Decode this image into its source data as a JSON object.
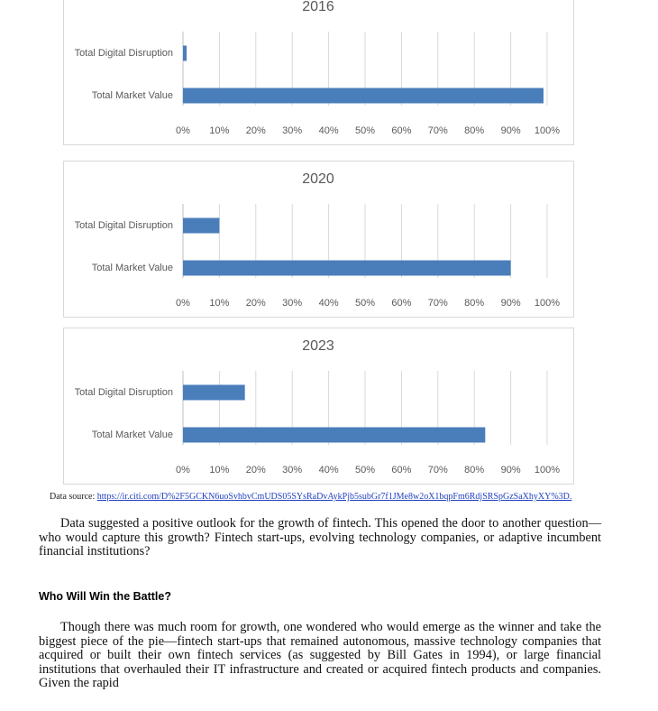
{
  "chart_data": [
    {
      "type": "bar",
      "orientation": "horizontal",
      "title": "2016",
      "categories": [
        "Total Digital Disruption",
        "Total Market Value"
      ],
      "values": [
        1,
        99
      ],
      "color": "#4a7ebb",
      "xlim": [
        0,
        100
      ],
      "grid": true,
      "xticks": [
        {
          "value": 0,
          "label": "0%"
        },
        {
          "value": 10,
          "label": "10%"
        },
        {
          "value": 20,
          "label": "20%"
        },
        {
          "value": 30,
          "label": "30%"
        },
        {
          "value": 40,
          "label": "40%"
        },
        {
          "value": 50,
          "label": "50%"
        },
        {
          "value": 60,
          "label": "60%"
        },
        {
          "value": 70,
          "label": "70%"
        },
        {
          "value": 80,
          "label": "80%"
        },
        {
          "value": 90,
          "label": "90%"
        },
        {
          "value": 100,
          "label": "100%"
        }
      ]
    },
    {
      "type": "bar",
      "orientation": "horizontal",
      "title": "2020",
      "categories": [
        "Total Digital Disruption",
        "Total Market Value"
      ],
      "values": [
        10,
        90
      ],
      "color": "#4a7ebb",
      "xlim": [
        0,
        100
      ],
      "grid": true,
      "xticks": [
        {
          "value": 0,
          "label": "0%"
        },
        {
          "value": 10,
          "label": "10%"
        },
        {
          "value": 20,
          "label": "20%"
        },
        {
          "value": 30,
          "label": "30%"
        },
        {
          "value": 40,
          "label": "40%"
        },
        {
          "value": 50,
          "label": "50%"
        },
        {
          "value": 60,
          "label": "60%"
        },
        {
          "value": 70,
          "label": "70%"
        },
        {
          "value": 80,
          "label": "80%"
        },
        {
          "value": 90,
          "label": "90%"
        },
        {
          "value": 100,
          "label": "100%"
        }
      ]
    },
    {
      "type": "bar",
      "orientation": "horizontal",
      "title": "2023",
      "categories": [
        "Total Digital Disruption",
        "Total Market Value"
      ],
      "values": [
        17,
        83
      ],
      "color": "#4a7ebb",
      "xlim": [
        0,
        100
      ],
      "grid": true,
      "xticks": [
        {
          "value": 0,
          "label": "0%"
        },
        {
          "value": 10,
          "label": "10%"
        },
        {
          "value": 20,
          "label": "20%"
        },
        {
          "value": 30,
          "label": "30%"
        },
        {
          "value": 40,
          "label": "40%"
        },
        {
          "value": 50,
          "label": "50%"
        },
        {
          "value": 60,
          "label": "60%"
        },
        {
          "value": 70,
          "label": "70%"
        },
        {
          "value": 80,
          "label": "80%"
        },
        {
          "value": 90,
          "label": "90%"
        },
        {
          "value": 100,
          "label": "100%"
        }
      ]
    }
  ],
  "source": {
    "label": "Data source:",
    "url": "https://ir.citi.com/D%2F5GCKN6uoSvhbvCmUDS05SYsRaDvAykPjb5subGr7f1JMe8w2oX1bqpFm6RdjSRSpGzSaXhyXY%3D."
  },
  "paragraphs": [
    "Data suggested a positive outlook for the growth of fintech. This opened the door to another question—who would capture this growth? Fintech start-ups, evolving technology companies, or adaptive incumbent financial institutions?"
  ],
  "heading": "Who Will Win the Battle?",
  "paragraphs2": [
    "Though there was much room for growth, one wondered who would emerge as the winner and take the biggest piece of the pie—fintech start-ups that remained autonomous, massive technology companies that acquired or built their own fintech services (as suggested by Bill Gates in 1994), or large financial institutions that overhauled their IT infrastructure and created or acquired fintech products and companies. Given the rapid"
  ]
}
